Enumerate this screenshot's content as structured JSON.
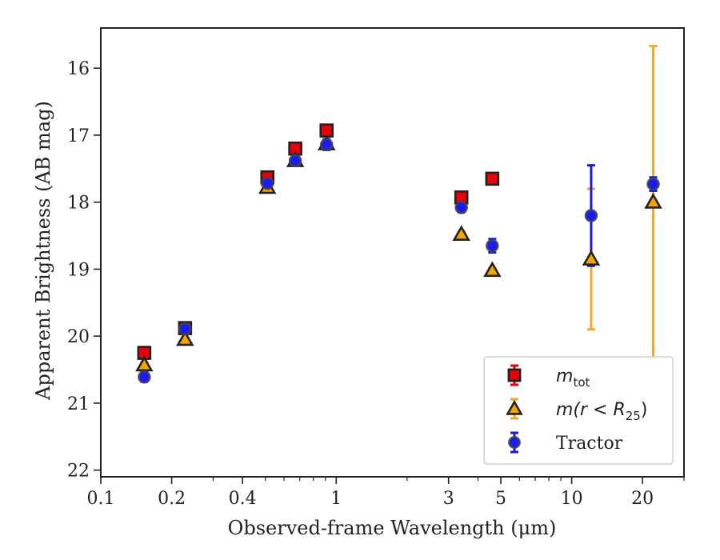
{
  "chart_data": {
    "type": "scatter",
    "title": "",
    "xlabel": "Observed-frame Wavelength (μm)",
    "ylabel": "Apparent Brightness (AB mag)",
    "x_scale": "log",
    "xlim": [
      0.1,
      30
    ],
    "ylim": [
      22.1,
      15.4
    ],
    "y_inverted": true,
    "grid": false,
    "legend_position": "lower-right",
    "x_ticks": [
      {
        "value": 0.1,
        "label": "0.1"
      },
      {
        "value": 0.2,
        "label": "0.2"
      },
      {
        "value": 0.4,
        "label": "0.4"
      },
      {
        "value": 1,
        "label": "1"
      },
      {
        "value": 3,
        "label": "3"
      },
      {
        "value": 5,
        "label": "5"
      },
      {
        "value": 10,
        "label": "10"
      },
      {
        "value": 20,
        "label": "20"
      }
    ],
    "y_ticks": [
      {
        "value": 16,
        "label": "16"
      },
      {
        "value": 17,
        "label": "17"
      },
      {
        "value": 18,
        "label": "18"
      },
      {
        "value": 19,
        "label": "19"
      },
      {
        "value": 20,
        "label": "20"
      },
      {
        "value": 21,
        "label": "21"
      },
      {
        "value": 22,
        "label": "22"
      }
    ],
    "series": [
      {
        "name_main": "m",
        "name_sub": "tot",
        "marker": "square",
        "color": "#e8000b",
        "edge_color": "#222222",
        "error_color": "#e8000b",
        "points": [
          {
            "x": 0.153,
            "y": 20.25,
            "err": 0.05
          },
          {
            "x": 0.228,
            "y": 19.88,
            "err": 0.05
          },
          {
            "x": 0.51,
            "y": 17.63,
            "err": 0.05
          },
          {
            "x": 0.67,
            "y": 17.2,
            "err": 0.05
          },
          {
            "x": 0.91,
            "y": 16.93,
            "err": 0.08
          },
          {
            "x": 3.4,
            "y": 17.93,
            "err": 0.05
          },
          {
            "x": 4.6,
            "y": 17.65,
            "err": 0.05
          }
        ]
      },
      {
        "name_main": "m(r < R",
        "name_sub": "25",
        "name_end": ")",
        "marker": "triangle",
        "color": "#f5a300",
        "edge_color": "#222222",
        "error_color": "#f5a623",
        "points": [
          {
            "x": 0.153,
            "y": 20.43,
            "err": 0.04
          },
          {
            "x": 0.228,
            "y": 20.05,
            "err": 0.04
          },
          {
            "x": 0.51,
            "y": 17.78,
            "err": 0.04
          },
          {
            "x": 0.67,
            "y": 17.38,
            "err": 0.04
          },
          {
            "x": 0.91,
            "y": 17.13,
            "err": 0.04
          },
          {
            "x": 3.4,
            "y": 18.48,
            "err": 0.04
          },
          {
            "x": 4.6,
            "y": 19.02,
            "err": 0.04
          },
          {
            "x": 12.1,
            "y": 18.85,
            "err": 1.05
          },
          {
            "x": 22.2,
            "y": 18.0,
            "err": 2.33
          }
        ]
      },
      {
        "name_main": "Tractor",
        "marker": "circle",
        "color": "#1a1aff",
        "edge_color": "#444444",
        "error_color": "#1a1ae0",
        "points": [
          {
            "x": 0.153,
            "y": 20.61,
            "err": 0.07
          },
          {
            "x": 0.228,
            "y": 19.89,
            "err": 0.04
          },
          {
            "x": 0.51,
            "y": 17.72,
            "err": 0.04
          },
          {
            "x": 0.67,
            "y": 17.38,
            "err": 0.04
          },
          {
            "x": 0.91,
            "y": 17.14,
            "err": 0.08
          },
          {
            "x": 3.4,
            "y": 18.08,
            "err": 0.07
          },
          {
            "x": 4.6,
            "y": 18.65,
            "err": 0.1
          },
          {
            "x": 12.1,
            "y": 18.2,
            "err": 0.75
          },
          {
            "x": 22.2,
            "y": 17.73,
            "err": 0.1
          }
        ]
      }
    ]
  }
}
